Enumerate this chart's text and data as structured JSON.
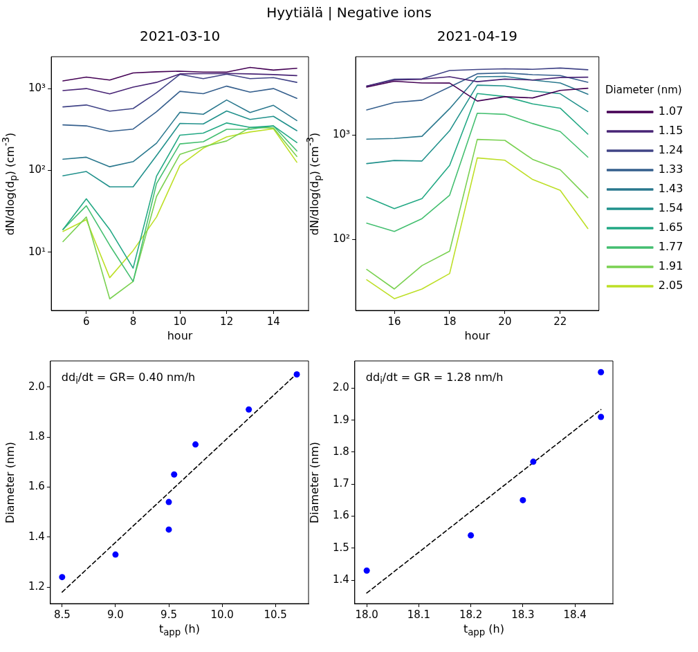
{
  "chart_data": [
    {
      "type": "line",
      "title": "Hyytiälä | Negative ions",
      "subtitle": "2021-03-10",
      "xlabel": "hour",
      "ylabel": "dN/dlog(d$_{p}$) (cm$^{-3}$)",
      "log": "y",
      "x": [
        5,
        6,
        7,
        8,
        9,
        10,
        11,
        12,
        13,
        14,
        15
      ],
      "xlim": [
        4.5,
        15.5
      ],
      "xticks": [
        6,
        8,
        10,
        12,
        14
      ],
      "ylim": [
        1.95,
        2450
      ],
      "yticks": [
        {
          "value": 10,
          "label": "10¹"
        },
        {
          "value": 100,
          "label": "10²"
        },
        {
          "value": 1000,
          "label": "10³"
        }
      ],
      "series": [
        {
          "color": "#440154",
          "values": [
            1240,
            1380,
            1270,
            1550,
            1600,
            1630,
            1590,
            1590,
            1810,
            1680,
            1770
          ]
        },
        {
          "color": "#482475",
          "values": [
            945,
            1000,
            860,
            1040,
            1190,
            1510,
            1520,
            1530,
            1510,
            1480,
            1440
          ]
        },
        {
          "color": "#414487",
          "values": [
            597,
            630,
            530,
            570,
            890,
            1490,
            1320,
            1500,
            1320,
            1360,
            1190
          ]
        },
        {
          "color": "#355f8d",
          "values": [
            360,
            350,
            300,
            320,
            520,
            925,
            865,
            1070,
            905,
            1000,
            760
          ]
        },
        {
          "color": "#2a788e",
          "values": [
            137,
            145,
            111,
            128,
            215,
            513,
            485,
            725,
            510,
            624,
            407
          ]
        },
        {
          "color": "#21918c",
          "values": [
            86,
            97,
            63,
            63,
            152,
            375,
            370,
            533,
            420,
            458,
            306
          ]
        },
        {
          "color": "#22a884",
          "values": [
            19,
            45,
            19,
            6.4,
            85,
            270,
            286,
            380,
            335,
            350,
            219
          ]
        },
        {
          "color": "#44bf70",
          "values": [
            19,
            37,
            12.2,
            4.4,
            69,
            211,
            224,
            318,
            318,
            350,
            173
          ]
        },
        {
          "color": "#7ad151",
          "values": [
            13.5,
            27,
            2.7,
            4.4,
            48,
            157,
            195,
            229,
            335,
            330,
            148
          ]
        },
        {
          "color": "#bddf26",
          "values": [
            18,
            25,
            4.9,
            10.5,
            27,
            115,
            187,
            257,
            295,
            323,
            126
          ]
        }
      ]
    },
    {
      "type": "line",
      "title": "2021-04-19",
      "xlabel": "hour",
      "ylabel": "dN/dlog(d$_{p}$) (cm$^{-3}$)",
      "log": "y",
      "legend": "right",
      "legend_title": "Diameter (nm)",
      "x": [
        15,
        16,
        17,
        18,
        19,
        20,
        21,
        22,
        23
      ],
      "xlim": [
        14.6,
        23.4
      ],
      "xticks": [
        16,
        18,
        20,
        22
      ],
      "ylim": [
        20.8,
        5640
      ],
      "yticks": [
        {
          "value": 100,
          "label": "10²"
        },
        {
          "value": 1000,
          "label": "10³"
        }
      ],
      "series": [
        {
          "name": "1.07",
          "color": "#440154",
          "values": [
            2880,
            3280,
            3160,
            3150,
            2120,
            2330,
            2270,
            2680,
            2810
          ]
        },
        {
          "name": "1.15",
          "color": "#482475",
          "values": [
            2950,
            3370,
            3430,
            3620,
            3250,
            3440,
            3370,
            3560,
            3590
          ]
        },
        {
          "name": "1.24",
          "color": "#414487",
          "values": [
            2950,
            3430,
            3460,
            4160,
            4250,
            4320,
            4270,
            4390,
            4230
          ]
        },
        {
          "name": "1.33",
          "color": "#355f8d",
          "values": [
            1740,
            2050,
            2160,
            2890,
            3870,
            3940,
            3790,
            3720,
            3210
          ]
        },
        {
          "name": "1.43",
          "color": "#2a788e",
          "values": [
            913,
            927,
            973,
            1790,
            3620,
            3650,
            3370,
            3160,
            2460
          ]
        },
        {
          "name": "1.54",
          "color": "#21918c",
          "values": [
            532,
            570,
            564,
            1100,
            3010,
            2960,
            2650,
            2490,
            1680
          ]
        },
        {
          "name": "1.65",
          "color": "#22a884",
          "values": [
            254,
            197,
            246,
            512,
            2500,
            2340,
            1990,
            1810,
            1020
          ]
        },
        {
          "name": "1.77",
          "color": "#44bf70",
          "values": [
            143,
            119,
            158,
            265,
            1620,
            1580,
            1290,
            1080,
            614
          ]
        },
        {
          "name": "1.91",
          "color": "#7ad151",
          "values": [
            51.5,
            33.4,
            56,
            77,
            908,
            889,
            585,
            465,
            251
          ]
        },
        {
          "name": "2.05",
          "color": "#bddf26",
          "values": [
            41,
            27,
            33.4,
            47,
            604,
            573,
            375,
            295,
            127
          ]
        }
      ]
    },
    {
      "type": "scatter",
      "xlabel": "t$_{app}$ (h)",
      "ylabel": "Diameter (nm)",
      "annotations": [
        "dd$_{i}$/dt = GR= 0.40 nm/h"
      ],
      "xlim": [
        8.39,
        10.81
      ],
      "xticks": [
        8.5,
        {
          "value": 9,
          "label": "9.0"
        },
        9.5,
        {
          "value": 10,
          "label": "10.0"
        },
        10.5
      ],
      "ylim": [
        1.134,
        2.104
      ],
      "yticks": [
        1.2,
        1.4,
        1.6,
        1.8,
        {
          "value": 2,
          "label": "2.0"
        }
      ],
      "series": [
        {
          "marker": "circle",
          "color": "#0000ff",
          "x": [
            8.5,
            9.0,
            9.5,
            9.5,
            9.55,
            9.75,
            10.25,
            10.7
          ],
          "values": [
            1.24,
            1.33,
            1.43,
            1.54,
            1.65,
            1.77,
            1.91,
            2.05
          ]
        },
        {
          "type": "line",
          "line_style": "dashed",
          "color": "#000000",
          "x": [
            8.5,
            10.7
          ],
          "values": [
            1.18,
            2.053
          ]
        }
      ]
    },
    {
      "type": "scatter",
      "xlabel": "t$_{app}$ (h)",
      "ylabel": "Diameter (nm)",
      "annotations": [
        "dd$_{i}$/dt = GR = 1.28 nm/h"
      ],
      "xlim": [
        17.977,
        18.473
      ],
      "xticks": [
        {
          "value": 18,
          "label": "18.0"
        },
        18.1,
        18.2,
        18.3,
        18.4
      ],
      "ylim": [
        1.327,
        2.085
      ],
      "yticks": [
        1.4,
        1.5,
        1.6,
        1.7,
        1.8,
        1.9,
        {
          "value": 2,
          "label": "2.0"
        }
      ],
      "series": [
        {
          "marker": "circle",
          "color": "#0000ff",
          "x": [
            18.0,
            18.2,
            18.3,
            18.32,
            18.45,
            18.45
          ],
          "values": [
            1.43,
            1.54,
            1.65,
            1.77,
            1.91,
            2.05
          ]
        },
        {
          "type": "line",
          "line_style": "dashed",
          "color": "#000000",
          "x": [
            18.0,
            18.45
          ],
          "values": [
            1.36,
            1.933
          ]
        }
      ]
    }
  ]
}
